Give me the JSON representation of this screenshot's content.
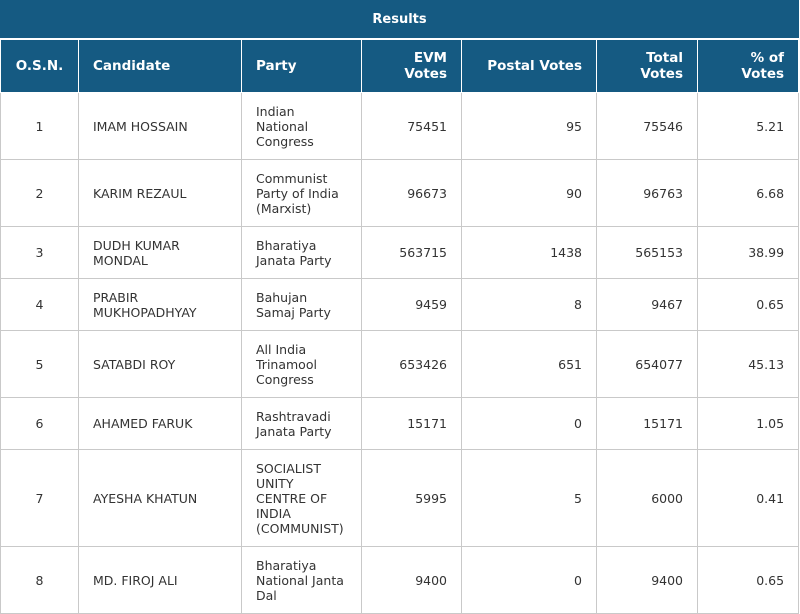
{
  "title": "Results",
  "columns": {
    "osn": "O.S.N.",
    "candidate": "Candidate",
    "party": "Party",
    "evm": "EVM Votes",
    "postal": "Postal Votes",
    "total": "Total Votes",
    "pct": "% of Votes"
  },
  "rows": [
    {
      "osn": "1",
      "candidate": "IMAM HOSSAIN",
      "party": "Indian National Congress",
      "evm": "75451",
      "postal": "95",
      "total": "75546",
      "pct": "5.21"
    },
    {
      "osn": "2",
      "candidate": "KARIM REZAUL",
      "party": "Communist Party of India (Marxist)",
      "evm": "96673",
      "postal": "90",
      "total": "96763",
      "pct": "6.68"
    },
    {
      "osn": "3",
      "candidate": "DUDH KUMAR MONDAL",
      "party": "Bharatiya Janata Party",
      "evm": "563715",
      "postal": "1438",
      "total": "565153",
      "pct": "38.99"
    },
    {
      "osn": "4",
      "candidate": "PRABIR MUKHOPADHYAY",
      "party": "Bahujan Samaj Party",
      "evm": "9459",
      "postal": "8",
      "total": "9467",
      "pct": "0.65"
    },
    {
      "osn": "5",
      "candidate": "SATABDI ROY",
      "party": "All India Trinamool Congress",
      "evm": "653426",
      "postal": "651",
      "total": "654077",
      "pct": "45.13"
    },
    {
      "osn": "6",
      "candidate": "AHAMED FARUK",
      "party": "Rashtravadi Janata Party",
      "evm": "15171",
      "postal": "0",
      "total": "15171",
      "pct": "1.05"
    },
    {
      "osn": "7",
      "candidate": "AYESHA KHATUN",
      "party": "SOCIALIST UNITY CENTRE OF INDIA (COMMUNIST)",
      "evm": "5995",
      "postal": "5",
      "total": "6000",
      "pct": "0.41"
    },
    {
      "osn": "8",
      "candidate": "MD. FIROJ ALI",
      "party": "Bharatiya National Janta Dal",
      "evm": "9400",
      "postal": "0",
      "total": "9400",
      "pct": "0.65"
    }
  ]
}
